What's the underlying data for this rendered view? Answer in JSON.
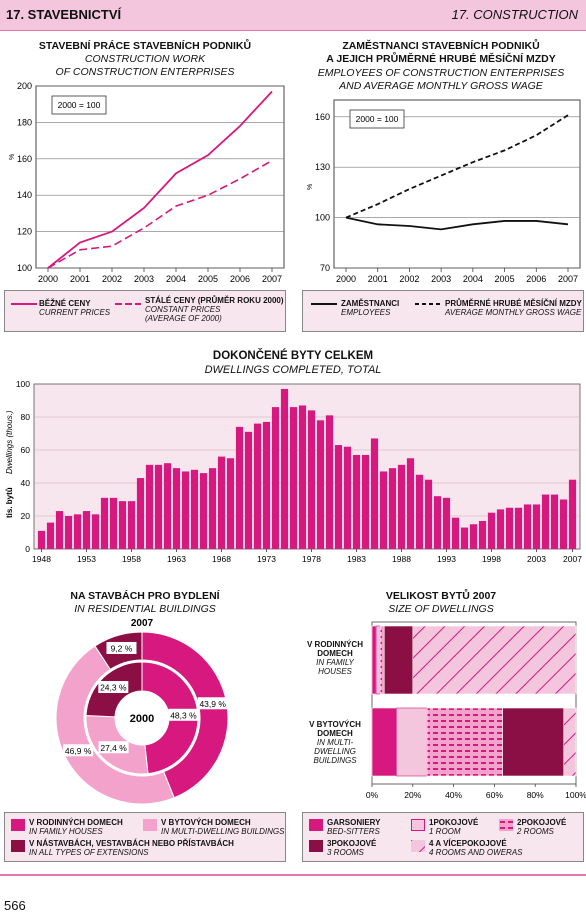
{
  "header": {
    "left": "17. STAVEBNICTVÍ",
    "right": "17. CONSTRUCTION"
  },
  "page_number": "566",
  "colors": {
    "accent": "#d6187f",
    "light_pink": "#f3c6de",
    "dark": "#8b0f45",
    "panel_bg": "#f8e6ef"
  },
  "panel1": {
    "title": "STAVEBNÍ PRÁCE STAVEBNÍCH PODNIKŮ",
    "subtitle1": "CONSTRUCTION WORK",
    "subtitle2": "OF CONSTRUCTION ENTERPRISES",
    "note": "2000 = 100",
    "ylabel": "%",
    "legend": [
      {
        "cz": "BĚŽNÉ CENY",
        "en": "CURRENT PRICES"
      },
      {
        "cz": "STÁLÉ CENY (PRŮMĚR ROKU 2000)",
        "en": "CONSTANT PRICES",
        "en2": "(AVERAGE OF 2000)"
      }
    ]
  },
  "panel2": {
    "title1": "ZAMĚSTNANCI STAVEBNÍCH PODNIKŮ",
    "title2": "A JEJICH PRŮMĚRNÉ HRUBÉ MĚSÍČNÍ MZDY",
    "subtitle1": "EMPLOYEES OF CONSTRUCTION ENTERPRISES",
    "subtitle2": "AND AVERAGE MONTHLY GROSS WAGE",
    "note": "2000 = 100",
    "ylabel": "%",
    "legend": [
      {
        "cz": "ZAMĚSTNANCI",
        "en": "EMPLOYEES"
      },
      {
        "cz": "PRŮMĚRNÉ HRUBÉ MĚSÍČNÍ MZDY",
        "en": "AVERAGE MONTHLY GROSS WAGE"
      }
    ]
  },
  "panel3": {
    "title": "DOKONČENÉ BYTY CELKEM",
    "subtitle": "DWELLINGS COMPLETED, TOTAL",
    "ylabel_cz": "tis. bytů",
    "ylabel_en": "Dwellings (thous.)"
  },
  "panel4": {
    "title": "NA STAVBÁCH PRO BYDLENÍ",
    "subtitle": "IN RESIDENTIAL BUILDINGS",
    "outer_year": "2007",
    "inner_year": "2000",
    "legend": [
      {
        "cz": "V RODINNÝCH DOMECH",
        "en": "IN FAMILY HOUSES"
      },
      {
        "cz": "V BYTOVÝCH DOMECH",
        "en": "IN MULTI-DWELLING BUILDINGS"
      },
      {
        "cz": "V NÁSTAVBÁCH, VESTAVBÁCH NEBO PŘÍSTAVBÁCH",
        "en": "IN ALL TYPES OF EXTENSIONS"
      }
    ]
  },
  "panel5": {
    "title": "VELIKOST BYTŮ 2007",
    "subtitle": "SIZE OF DWELLINGS",
    "row1": {
      "l1": "V RODINNÝCH",
      "l2": "DOMECH",
      "l3": "IN FAMILY",
      "l4": "HOUSES"
    },
    "row2": {
      "l1": "V BYTOVÝCH",
      "l2": "DOMECH",
      "l3": "IN MULTI-",
      "l4": "DWELLING",
      "l5": "BUILDINGS"
    },
    "legend": [
      {
        "cz": "GARSONIERY",
        "en": "BED-SITTERS"
      },
      {
        "cz": "1POKOJOVÉ",
        "en": "1 ROOM"
      },
      {
        "cz": "2POKOJOVÉ",
        "en": "2 ROOMS"
      },
      {
        "cz": "3POKOJOVÉ",
        "en": "3 ROOMS"
      },
      {
        "cz": "4 A VÍCEPOKOJOVÉ",
        "en": "4 ROOMS AND OWERAS"
      }
    ]
  },
  "chart_data": [
    {
      "type": "line",
      "x": [
        "2000",
        "2001",
        "2002",
        "2003",
        "2004",
        "2005",
        "2006",
        "2007"
      ],
      "ylim": [
        100,
        200
      ],
      "yticks": [
        100,
        120,
        140,
        160,
        180,
        200
      ],
      "series": [
        {
          "name": "BĚŽNÉ CENY",
          "values": [
            100,
            114,
            120,
            133,
            152,
            162,
            178,
            197
          ]
        },
        {
          "name": "STÁLÉ CENY (PRŮMĚR ROKU 2000)",
          "values": [
            100,
            110,
            112,
            122,
            134,
            140,
            149,
            159
          ]
        }
      ]
    },
    {
      "type": "line",
      "x": [
        "2000",
        "2001",
        "2002",
        "2003",
        "2004",
        "2005",
        "2006",
        "2007"
      ],
      "ylim": [
        70,
        170
      ],
      "yticks": [
        70,
        100,
        130,
        160
      ],
      "series": [
        {
          "name": "ZAMĚSTNANCI",
          "values": [
            100,
            96,
            95,
            93,
            96,
            98,
            98,
            96
          ]
        },
        {
          "name": "PRŮMĚRNÉ HRUBÉ MĚSÍČNÍ MZDY",
          "values": [
            100,
            108,
            117,
            125,
            133,
            140,
            149,
            161
          ]
        }
      ]
    },
    {
      "type": "bar",
      "categories": [
        1948,
        1949,
        1950,
        1951,
        1952,
        1953,
        1954,
        1955,
        1956,
        1957,
        1958,
        1959,
        1960,
        1961,
        1962,
        1963,
        1964,
        1965,
        1966,
        1967,
        1968,
        1969,
        1970,
        1971,
        1972,
        1973,
        1974,
        1975,
        1976,
        1977,
        1978,
        1979,
        1980,
        1981,
        1982,
        1983,
        1984,
        1985,
        1986,
        1987,
        1988,
        1989,
        1990,
        1991,
        1992,
        1993,
        1994,
        1995,
        1996,
        1997,
        1998,
        1999,
        2000,
        2001,
        2002,
        2003,
        2004,
        2005,
        2006,
        2007
      ],
      "values": [
        11,
        16,
        23,
        20,
        21,
        23,
        21,
        31,
        31,
        29,
        29,
        43,
        51,
        51,
        52,
        49,
        47,
        48,
        46,
        49,
        56,
        55,
        74,
        71,
        76,
        77,
        86,
        97,
        86,
        87,
        84,
        78,
        81,
        63,
        62,
        57,
        57,
        67,
        47,
        49,
        51,
        55,
        45,
        42,
        32,
        31,
        19,
        13,
        15,
        17,
        22,
        24,
        25,
        25,
        27,
        27,
        33,
        33,
        30,
        42
      ],
      "xticks": [
        1948,
        1953,
        1958,
        1963,
        1968,
        1973,
        1978,
        1983,
        1988,
        1993,
        1998,
        2003,
        2007
      ],
      "ylim": [
        0,
        100
      ],
      "yticks": [
        0,
        20,
        40,
        60,
        80,
        100
      ]
    },
    {
      "type": "pie",
      "rings": [
        {
          "name": "2007",
          "labels": [
            "V RODINNÝCH DOMECH",
            "V BYTOVÝCH DOMECH",
            "V NÁSTAVBÁCH, VESTAVBÁCH NEBO PŘÍSTAVBÁCH"
          ],
          "values": [
            43.9,
            46.9,
            9.2
          ],
          "value_labels": [
            "43,9 %",
            "46,9 %",
            "9,2 %"
          ]
        },
        {
          "name": "2000",
          "labels": [
            "V RODINNÝCH DOMECH",
            "V BYTOVÝCH DOMECH",
            "V NÁSTAVBÁCH, VESTAVBÁCH NEBO PŘÍSTAVBÁCH"
          ],
          "values": [
            48.3,
            27.4,
            24.3
          ],
          "value_labels": [
            "48,3 %",
            "27,4 %",
            "24,3 %"
          ]
        }
      ]
    },
    {
      "type": "bar",
      "orientation": "horizontal",
      "stacked": "percent",
      "categories": [
        "V RODINNÝCH DOMECH",
        "V BYTOVÝCH DOMECH"
      ],
      "series": [
        {
          "name": "GARSONIERY",
          "values": [
            2,
            12
          ]
        },
        {
          "name": "1POKOJOVÉ",
          "values": [
            2,
            15
          ]
        },
        {
          "name": "2POKOJOVÉ",
          "values": [
            2,
            37
          ]
        },
        {
          "name": "3POKOJOVÉ",
          "values": [
            14,
            30
          ]
        },
        {
          "name": "4 A VÍCEPOKOJOVÉ",
          "values": [
            80,
            6
          ]
        }
      ],
      "xticks": [
        "0%",
        "20%",
        "40%",
        "60%",
        "80%",
        "100%"
      ]
    }
  ]
}
